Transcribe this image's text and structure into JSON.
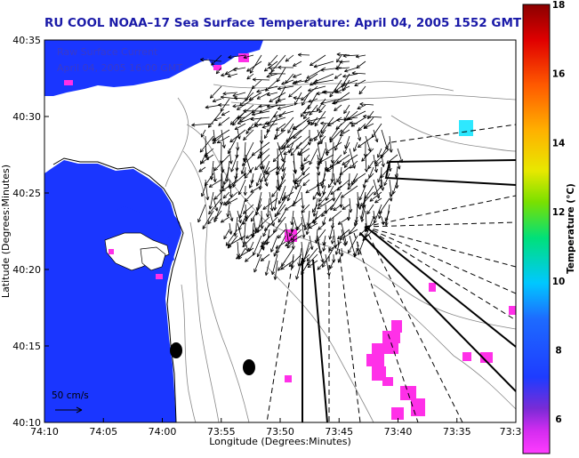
{
  "title": "RU COOL  NOAA–17  Sea Surface Temperature:  April 04, 2005 1552 GMT",
  "overlay": {
    "line1": "Raw Surface Current",
    "line2": "April 04, 2005 16:00 GMT"
  },
  "scale": {
    "label": "50 cm/s"
  },
  "colorbar": {
    "label": "Temperature (°C)",
    "min": 5,
    "max": 18,
    "ticks": [
      "6",
      "8",
      "10",
      "12",
      "14",
      "16",
      "18"
    ],
    "colors": {
      "5": "#ff3cff",
      "6": "#7a2bd6",
      "7": "#1e3cff",
      "9": "#00c8ff",
      "11": "#00e07a",
      "13": "#e8e800",
      "15": "#ff8c00",
      "17": "#e00000",
      "18": "#8b0000"
    }
  },
  "chart_data": {
    "type": "map",
    "xlabel": "Longitude (Degrees:Minutes)",
    "ylabel": "Latitude (Degrees:Minutes)",
    "xticks": [
      "74:10",
      "74:05",
      "74:00",
      "73:55",
      "73:50",
      "73:45",
      "73:40",
      "73:35",
      "73:3"
    ],
    "yticks": [
      "40:35",
      "40:30",
      "40:25",
      "40:20",
      "40:15",
      "40:10"
    ],
    "lon_range": [
      -74.1667,
      -73.5
    ],
    "lat_range": [
      40.1667,
      40.5833
    ],
    "land_color": "#1a36ff",
    "anomaly_color": "#ff30e8",
    "markers": [
      {
        "name": "station",
        "lon": -73.9805,
        "lat": 40.2452
      },
      {
        "name": "station",
        "lon": -73.8774,
        "lat": 40.2268
      }
    ]
  }
}
